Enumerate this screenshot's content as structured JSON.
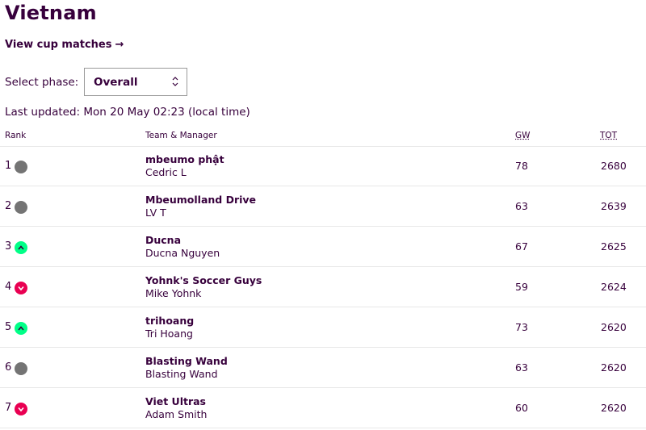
{
  "page": {
    "title": "Vietnam",
    "cup_link": "View cup matches",
    "cup_arrow": "→",
    "phase_label": "Select phase:",
    "phase_value": "Overall",
    "last_updated": "Last updated: Mon 20 May 02:23 (local time)"
  },
  "table": {
    "headers": {
      "rank": "Rank",
      "team": "Team & Manager",
      "gw": "GW",
      "tot": "TOT"
    },
    "rows": [
      {
        "rank": "1",
        "movement": "same",
        "team": "mbeumo phật",
        "manager": "Cedric L",
        "gw": "78",
        "tot": "2680"
      },
      {
        "rank": "2",
        "movement": "same",
        "team": "Mbeumolland Drive",
        "manager": "LV T",
        "gw": "63",
        "tot": "2639"
      },
      {
        "rank": "3",
        "movement": "up",
        "team": "Ducna",
        "manager": "Ducna Nguyen",
        "gw": "67",
        "tot": "2625"
      },
      {
        "rank": "4",
        "movement": "down",
        "team": "Yohnk's Soccer Guys",
        "manager": "Mike Yohnk",
        "gw": "59",
        "tot": "2624"
      },
      {
        "rank": "5",
        "movement": "up",
        "team": "trihoang",
        "manager": "Tri Hoang",
        "gw": "73",
        "tot": "2620"
      },
      {
        "rank": "6",
        "movement": "same",
        "team": "Blasting Wand",
        "manager": "Blasting Wand",
        "gw": "63",
        "tot": "2620"
      },
      {
        "rank": "7",
        "movement": "down",
        "team": "Viet Ultras",
        "manager": "Adam Smith",
        "gw": "60",
        "tot": "2620"
      }
    ]
  },
  "colors": {
    "text": "#37003c",
    "same": "#747474",
    "up": "#00ff87",
    "down": "#e90052"
  },
  "icons": {
    "same": "circle-same-icon",
    "up": "arrow-up-icon",
    "down": "arrow-down-icon",
    "select": "chevron-updown-icon"
  }
}
